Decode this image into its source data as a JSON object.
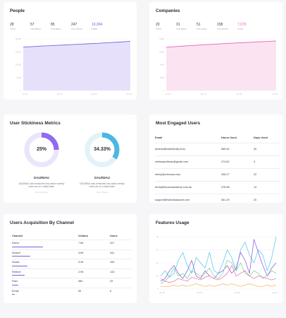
{
  "people": {
    "title": "People",
    "stats": [
      {
        "value": "28",
        "label": "TODAY"
      },
      {
        "value": "57",
        "label": "YESTERDAY"
      },
      {
        "value": "85",
        "label": "THIS WEEK"
      },
      {
        "value": "247",
        "label": "THIS MONTH"
      },
      {
        "value": "19,094",
        "label": "TOTAL"
      }
    ],
    "accent": "#7c62e6",
    "y_ticks": [
      "20,000",
      "15,000",
      "10,000",
      "5,000",
      "0"
    ],
    "x_ticks": [
      "Jun 05",
      "Jun 12",
      "Jun 19",
      "Jun 26"
    ]
  },
  "companies": {
    "title": "Companies",
    "stats": [
      {
        "value": "20",
        "label": "TODAY"
      },
      {
        "value": "31",
        "label": "YESTERDAY"
      },
      {
        "value": "51",
        "label": "THIS WEEK"
      },
      {
        "value": "158",
        "label": "THIS MONTH"
      },
      {
        "value": "7,676",
        "label": "TOTAL"
      }
    ],
    "accent": "#e664b8",
    "y_ticks": [
      "8,000",
      "6,000",
      "4,000",
      "2,000",
      "0"
    ],
    "x_ticks": [
      "Jun 05",
      "Jun 12",
      "Jun 19",
      "Jun 26"
    ]
  },
  "stickiness": {
    "title": "User Stickiness Metrics",
    "donuts": [
      {
        "percent": 25,
        "value_text": "25%",
        "label": "DAU/MAU",
        "description": "DAU/MAU ratio measures how active monthly users are on a daily basis.",
        "link": "Over 30 Days",
        "color": "#8f6bf0",
        "track": "#ebe5fb"
      },
      {
        "percent": 34.33,
        "value_text": "34.33%",
        "label": "DAU/WAU",
        "description": "DAU/WAU ratio measures how active weekly users are on a daily basis.",
        "link": "Over 7 Days",
        "color": "#4bb7e3",
        "track": "#e2f2f9"
      }
    ]
  },
  "engaged": {
    "title": "Most Engaged Users",
    "columns": [
      "Email",
      "Hours Used",
      "Days Used"
    ],
    "rows": [
      [
        "andrew@clarkfamily.id.au",
        "565.64",
        "30"
      ],
      [
        "melissasoltman@gmail.com",
        "474.62",
        "9"
      ],
      [
        "sheryl@cirruswa.com",
        "436.27",
        "22"
      ],
      [
        "kezia@focusmartalerts.com.au",
        "378.58",
        "13"
      ],
      [
        "support@franciasassore.com",
        "361.29",
        "20"
      ]
    ]
  },
  "acquisition": {
    "title": "Users Acquisition By Channel",
    "columns": [
      "Channel",
      "Visitors",
      "Users"
    ],
    "rows": [
      {
        "channel": "Direct",
        "visitors": "7.5K",
        "users": "207",
        "share": 1.0
      },
      {
        "channel": "Search",
        "visitors": "3.6K",
        "users": "341",
        "share": 0.6
      },
      {
        "channel": "Social",
        "visitors": "3.4K",
        "users": "105",
        "share": 0.5
      },
      {
        "channel": "Referer",
        "visitors": "2.9K",
        "users": "143",
        "share": 0.4
      },
      {
        "channel": "Paid",
        "visitors": "360",
        "users": "29",
        "share": 0.2
      },
      {
        "channel": "Email",
        "visitors": "59",
        "users": "6",
        "share": 0.1
      }
    ]
  },
  "features": {
    "title": "Features Usage",
    "y_ticks": [
      "40",
      "30",
      "20",
      "10",
      "0"
    ],
    "x_ticks": [
      "Jun 05",
      "Jun 12",
      "Jun 19",
      "Jun 26"
    ]
  },
  "chart_data": [
    {
      "type": "area",
      "categories": [
        "Jun 05",
        "Jun 12",
        "Jun 19",
        "Jun 26"
      ],
      "x": [
        0,
        1,
        2,
        3,
        4,
        5,
        6,
        7,
        8,
        9,
        10,
        11,
        12,
        13,
        14,
        15,
        16,
        17,
        18,
        19,
        20,
        21,
        22,
        23,
        24
      ],
      "series": [
        {
          "values": [
            16800,
            16900,
            17000,
            17100,
            17200,
            17300,
            17350,
            17450,
            17550,
            17600,
            17700,
            17800,
            17900,
            17950,
            18050,
            18150,
            18250,
            18300,
            18400,
            18500,
            18600,
            18700,
            18800,
            18950,
            19094
          ]
        }
      ],
      "ylim": [
        0,
        20000
      ],
      "yticks": [
        0,
        5000,
        10000,
        15000,
        20000
      ],
      "color": "#7c62e6",
      "fill": "#e7e0fb",
      "grid": true
    },
    {
      "type": "area",
      "categories": [
        "Jun 05",
        "Jun 12",
        "Jun 19",
        "Jun 26"
      ],
      "x": [
        0,
        1,
        2,
        3,
        4,
        5,
        6,
        7,
        8,
        9,
        10,
        11,
        12,
        13,
        14,
        15,
        16,
        17,
        18,
        19,
        20,
        21,
        22,
        23,
        24
      ],
      "series": [
        {
          "values": [
            6700,
            6750,
            6800,
            6850,
            6900,
            6950,
            6990,
            7030,
            7080,
            7120,
            7160,
            7200,
            7240,
            7280,
            7320,
            7350,
            7390,
            7420,
            7460,
            7500,
            7540,
            7570,
            7600,
            7640,
            7676
          ]
        }
      ],
      "ylim": [
        0,
        8000
      ],
      "yticks": [
        0,
        2000,
        4000,
        6000,
        8000
      ],
      "color": "#e664b8",
      "fill": "#fbe3f1",
      "grid": true
    },
    {
      "type": "line",
      "categories": [
        "Jun 05",
        "Jun 12",
        "Jun 19",
        "Jun 26"
      ],
      "x": [
        0,
        1,
        2,
        3,
        4,
        5,
        6,
        7,
        8,
        9,
        10,
        11,
        12,
        13,
        14,
        15,
        16,
        17,
        18,
        19,
        20,
        21,
        22,
        23,
        24,
        25,
        26
      ],
      "series": [
        {
          "color": "#4bc4e8",
          "values": [
            10,
            14,
            9,
            12,
            22,
            28,
            18,
            12,
            24,
            20,
            16,
            28,
            14,
            12,
            20,
            30,
            24,
            14,
            30,
            36,
            26,
            20,
            30,
            26,
            14,
            24,
            40
          ]
        },
        {
          "color": "#8a4fe0",
          "values": [
            6,
            8,
            14,
            18,
            12,
            8,
            14,
            22,
            10,
            8,
            14,
            10,
            8,
            12,
            14,
            18,
            12,
            16,
            28,
            22,
            12,
            38,
            28,
            18,
            10,
            16,
            20
          ]
        },
        {
          "color": "#6fd08a",
          "values": [
            4,
            6,
            10,
            16,
            10,
            12,
            8,
            14,
            12,
            10,
            12,
            16,
            10,
            8,
            12,
            22,
            20,
            14,
            20,
            12,
            10,
            14,
            12,
            8,
            10,
            14,
            12
          ]
        },
        {
          "color": "#e46aa8",
          "values": [
            8,
            6,
            5,
            6,
            8,
            7,
            6,
            9,
            8,
            7,
            9,
            10,
            8,
            7,
            9,
            12,
            18,
            10,
            12,
            14,
            10,
            8,
            10,
            9,
            8,
            7,
            8
          ]
        },
        {
          "color": "#f2b04a",
          "values": [
            2,
            2,
            2,
            3,
            2,
            3,
            2,
            3,
            4,
            3,
            2,
            3,
            2,
            3,
            4,
            3,
            4,
            3,
            2,
            3,
            4,
            3,
            2,
            2,
            3,
            2,
            3
          ]
        }
      ],
      "ylim": [
        0,
        40
      ],
      "yticks": [
        0,
        10,
        20,
        30,
        40
      ],
      "grid": true
    }
  ]
}
